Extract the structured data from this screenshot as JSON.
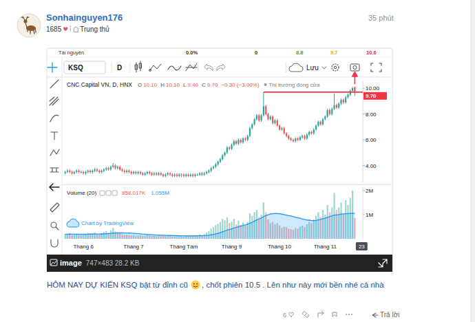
{
  "post": {
    "author": "Sonhainguyen176",
    "stats": "1685",
    "role": "Trung thủ",
    "time": "35 phút",
    "text": [
      "HÔM NAY DỰ KIẾN KSQ bật từ đỉnh cũ",
      ", chốt phiên 10.5 . Lên như này mới bền nhé cả nhà"
    ],
    "likes": "6",
    "reply": "Trả lời",
    "image_caption": {
      "label": "image",
      "dims": "747×483 28.2 KB"
    }
  },
  "widget": {
    "top_row": [
      "Tài nguyên",
      "0.0%",
      "0",
      "8.8",
      "9.7",
      "10.6"
    ],
    "symbol": "KSQ",
    "interval": "D",
    "save": "Lưu",
    "ohlc": [
      [
        "O",
        "10.10"
      ],
      [
        "H",
        "10.10"
      ],
      [
        "L",
        "9.40"
      ],
      [
        "C",
        "9.70"
      ]
    ],
    "change": "−0.30 (−3.00%)",
    "market_status": "Thị trường đóng cửa",
    "watermark": "Chart by TradingView"
  },
  "chart_data": [
    {
      "type": "candlestick",
      "title": "CNC Capital VN, D, HNX",
      "categories": [
        null,
        null,
        null,
        null,
        null,
        null,
        null,
        null,
        "Tháng 6",
        null,
        null,
        null,
        null,
        null,
        null,
        null,
        null,
        null,
        null,
        null,
        null,
        null,
        null,
        null,
        null,
        null,
        null,
        null,
        null,
        null,
        "Tháng 7",
        null,
        null,
        null,
        null,
        null,
        null,
        null,
        null,
        null,
        null,
        null,
        null,
        null,
        null,
        null,
        null,
        null,
        null,
        null,
        null,
        null,
        "Tháng Tám",
        null,
        null,
        null,
        null,
        null,
        null,
        null,
        null,
        null,
        null,
        null,
        null,
        null,
        null,
        null,
        null,
        null,
        null,
        null,
        null,
        "Tháng 9",
        null,
        null,
        null,
        null,
        null,
        null,
        null,
        null,
        null,
        null,
        null,
        null,
        null,
        null,
        null,
        null,
        null,
        null,
        null,
        null,
        "Tháng 10",
        null,
        null,
        null,
        null,
        null,
        null,
        null,
        null,
        null,
        null,
        null,
        null,
        null,
        null,
        null,
        null,
        null,
        null,
        null,
        "Tháng 11",
        null,
        null,
        null,
        null,
        null,
        null,
        null,
        null,
        null,
        null,
        null,
        null,
        null,
        null,
        null,
        "23"
      ],
      "open": [
        3.4,
        3.5,
        3.6,
        3.5,
        3.4,
        3.5,
        3.6,
        3.5,
        3.5,
        3.4,
        3.5,
        3.6,
        3.5,
        3.6,
        3.7,
        3.6,
        3.5,
        3.6,
        3.7,
        3.8,
        3.7,
        3.9,
        4.0,
        3.8,
        3.9,
        3.7,
        3.6,
        3.5,
        3.6,
        3.5,
        3.4,
        3.5,
        3.4,
        3.5,
        3.4,
        3.3,
        3.4,
        3.5,
        3.4,
        3.3,
        3.4,
        3.3,
        3.4,
        3.3,
        3.2,
        3.3,
        3.4,
        3.3,
        3.2,
        3.3,
        3.2,
        3.3,
        3.3,
        3.2,
        3.3,
        3.2,
        3.3,
        3.2,
        3.3,
        3.3,
        3.4,
        3.3,
        3.4,
        3.5,
        3.6,
        3.8,
        3.9,
        4.1,
        4.3,
        4.5,
        4.8,
        5.0,
        5.4,
        5.3,
        5.6,
        5.9,
        5.7,
        6.0,
        5.8,
        6.1,
        6.0,
        6.3,
        6.9,
        7.2,
        7.6,
        7.9,
        7.5,
        7.9,
        8.6,
        8.0,
        7.6,
        7.8,
        7.3,
        7.5,
        7.1,
        6.8,
        6.9,
        6.5,
        6.3,
        6.1,
        6.0,
        5.9,
        6.1,
        6.0,
        6.2,
        6.3,
        6.1,
        6.4,
        6.6,
        6.5,
        6.8,
        7.1,
        7.4,
        7.2,
        7.6,
        7.8,
        8.3,
        8.0,
        8.4,
        8.7,
        8.5,
        8.8,
        9.1,
        8.9,
        9.3,
        9.5,
        9.8,
        10.1,
        null,
        null,
        null
      ],
      "high": [
        3.6,
        3.7,
        3.7,
        3.6,
        3.6,
        3.7,
        3.7,
        3.6,
        3.6,
        3.6,
        3.7,
        3.7,
        3.7,
        3.8,
        3.8,
        3.7,
        3.7,
        3.8,
        3.9,
        3.9,
        4.0,
        4.2,
        4.1,
        4.0,
        4.0,
        3.8,
        3.7,
        3.7,
        3.7,
        3.6,
        3.6,
        3.6,
        3.6,
        3.6,
        3.5,
        3.5,
        3.6,
        3.6,
        3.5,
        3.5,
        3.5,
        3.5,
        3.5,
        3.4,
        3.4,
        3.5,
        3.5,
        3.4,
        3.4,
        3.4,
        3.4,
        3.4,
        3.4,
        3.4,
        3.4,
        3.4,
        3.4,
        3.4,
        3.4,
        3.5,
        3.5,
        3.5,
        3.6,
        3.7,
        3.9,
        4.0,
        4.2,
        4.4,
        4.6,
        4.9,
        5.1,
        5.5,
        5.5,
        5.7,
        6.0,
        6.0,
        6.1,
        6.1,
        6.2,
        6.2,
        6.4,
        7.0,
        7.3,
        7.7,
        8.0,
        8.0,
        8.0,
        9.7,
        8.7,
        8.1,
        7.9,
        7.9,
        7.6,
        7.6,
        7.2,
        7.0,
        7.0,
        6.6,
        6.4,
        6.2,
        6.1,
        6.2,
        6.2,
        6.3,
        6.4,
        6.4,
        6.5,
        6.7,
        6.7,
        6.9,
        7.2,
        7.5,
        7.5,
        7.7,
        7.9,
        8.4,
        8.4,
        8.5,
        9.6,
        8.8,
        8.9,
        9.2,
        9.2,
        9.4,
        9.6,
        9.9,
        10.1,
        10.1,
        null,
        null,
        null
      ],
      "low": [
        3.3,
        3.4,
        3.4,
        3.3,
        3.3,
        3.4,
        3.4,
        3.4,
        3.3,
        3.3,
        3.4,
        3.4,
        3.4,
        3.5,
        3.5,
        3.4,
        3.4,
        3.5,
        3.6,
        3.6,
        3.6,
        3.8,
        3.7,
        3.7,
        3.6,
        3.5,
        3.4,
        3.4,
        3.4,
        3.3,
        3.3,
        3.3,
        3.3,
        3.3,
        3.2,
        3.2,
        3.3,
        3.3,
        3.2,
        3.2,
        3.2,
        3.2,
        3.2,
        3.1,
        3.1,
        3.2,
        3.2,
        3.1,
        3.1,
        3.1,
        3.1,
        3.1,
        3.1,
        3.1,
        3.1,
        3.1,
        3.1,
        3.1,
        3.2,
        3.2,
        3.2,
        3.2,
        3.3,
        3.4,
        3.5,
        3.7,
        3.8,
        4.0,
        4.2,
        4.4,
        4.7,
        4.9,
        5.2,
        5.2,
        5.5,
        5.6,
        5.6,
        5.7,
        5.7,
        5.9,
        5.9,
        6.2,
        6.8,
        7.1,
        7.5,
        7.4,
        7.4,
        7.8,
        7.9,
        7.5,
        7.5,
        7.2,
        7.2,
        7.0,
        6.7,
        6.7,
        6.4,
        6.2,
        6.0,
        5.9,
        5.8,
        5.8,
        5.9,
        5.9,
        6.1,
        6.0,
        6.0,
        6.3,
        6.4,
        6.4,
        6.7,
        7.0,
        7.1,
        7.1,
        7.5,
        7.7,
        7.9,
        7.9,
        8.3,
        8.4,
        8.4,
        8.7,
        8.8,
        8.8,
        9.2,
        9.4,
        9.7,
        9.4,
        null,
        null,
        null
      ],
      "close": [
        3.5,
        3.6,
        3.5,
        3.4,
        3.5,
        3.6,
        3.5,
        3.5,
        3.4,
        3.5,
        3.6,
        3.5,
        3.6,
        3.7,
        3.6,
        3.5,
        3.6,
        3.7,
        3.8,
        3.7,
        3.9,
        4.0,
        3.8,
        3.9,
        3.7,
        3.6,
        3.5,
        3.6,
        3.5,
        3.4,
        3.5,
        3.4,
        3.5,
        3.4,
        3.3,
        3.4,
        3.5,
        3.4,
        3.3,
        3.4,
        3.3,
        3.4,
        3.3,
        3.2,
        3.3,
        3.4,
        3.3,
        3.2,
        3.3,
        3.2,
        3.3,
        3.3,
        3.2,
        3.3,
        3.2,
        3.3,
        3.2,
        3.3,
        3.3,
        3.4,
        3.3,
        3.4,
        3.5,
        3.6,
        3.8,
        3.9,
        4.1,
        4.3,
        4.5,
        4.8,
        5.0,
        5.4,
        5.3,
        5.6,
        5.9,
        5.7,
        6.0,
        5.8,
        6.1,
        6.0,
        6.3,
        6.9,
        7.2,
        7.6,
        7.9,
        7.5,
        7.9,
        8.6,
        8.0,
        7.6,
        7.8,
        7.3,
        7.5,
        7.1,
        6.8,
        6.9,
        6.5,
        6.3,
        6.1,
        6.0,
        5.9,
        6.1,
        6.0,
        6.2,
        6.3,
        6.1,
        6.4,
        6.6,
        6.5,
        6.8,
        7.1,
        7.4,
        7.2,
        7.6,
        7.8,
        8.3,
        8.0,
        8.4,
        8.7,
        8.5,
        8.8,
        9.1,
        8.9,
        9.3,
        9.5,
        9.8,
        10.0,
        9.7,
        null,
        null,
        null
      ],
      "ylim": [
        2.7,
        10.6
      ],
      "yticks": [
        {
          "value": 4,
          "label": "4.00"
        },
        {
          "value": 6,
          "label": "6.00"
        },
        {
          "value": 8,
          "label": "8.00"
        },
        {
          "value": 10,
          "label": "10.00"
        }
      ],
      "grid": false,
      "annotations": [
        {
          "type": "hline",
          "value": 9.7,
          "label": "9.70",
          "start": 87
        }
      ]
    },
    {
      "type": "bar",
      "title": "Volume (20)",
      "series": [
        {
          "type": "bar",
          "last_label": "858.017K",
          "values": [
            200000,
            180000,
            220000,
            150000,
            170000,
            210000,
            190000,
            160000,
            150000,
            180000,
            240000,
            200000,
            220000,
            260000,
            190000,
            170000,
            230000,
            280000,
            320000,
            250000,
            350000,
            450000,
            300000,
            260000,
            220000,
            180000,
            160000,
            170000,
            150000,
            140000,
            160000,
            130000,
            140000,
            150000,
            120000,
            130000,
            160000,
            140000,
            120000,
            130000,
            110000,
            130000,
            120000,
            140000,
            110000,
            150000,
            120000,
            100000,
            110000,
            100000,
            120000,
            110000,
            100000,
            120000,
            110000,
            130000,
            120000,
            140000,
            130000,
            180000,
            150000,
            200000,
            260000,
            320000,
            420000,
            480000,
            560000,
            620000,
            700000,
            820000,
            760000,
            900000,
            650000,
            700000,
            820000,
            600000,
            750000,
            580000,
            680000,
            550000,
            700000,
            1050000,
            950000,
            1100000,
            1200000,
            900000,
            1000000,
            1500000,
            1100000,
            800000,
            650000,
            700000,
            600000,
            650000,
            550000,
            450000,
            500000,
            480000,
            420000,
            400000,
            380000,
            450000,
            420000,
            500000,
            550000,
            480000,
            600000,
            700000,
            650000,
            800000,
            950000,
            1100000,
            900000,
            1200000,
            1000000,
            1400000,
            1100000,
            1300000,
            1900000,
            1200000,
            1300000,
            1500000,
            1000000,
            1600000,
            1400000,
            1700000,
            2000000,
            858017,
            null,
            null,
            null
          ]
        },
        {
          "type": "area",
          "color": "#2196f3",
          "last_label": "1.055M",
          "values": [
            190000,
            190000,
            192000,
            190000,
            188000,
            190000,
            190000,
            188000,
            186000,
            186000,
            190000,
            192000,
            194000,
            198000,
            198000,
            196000,
            200000,
            205000,
            212000,
            214000,
            222000,
            235000,
            240000,
            243000,
            245000,
            242000,
            240000,
            238000,
            235000,
            230000,
            226000,
            220000,
            212000,
            205000,
            195000,
            188000,
            180000,
            172000,
            165000,
            160000,
            155000,
            152000,
            148000,
            145000,
            140000,
            137000,
            135000,
            132000,
            130000,
            128000,
            126000,
            124000,
            122000,
            121000,
            120000,
            120000,
            120000,
            121000,
            122000,
            125000,
            127000,
            131000,
            138000,
            148000,
            163000,
            180000,
            202000,
            226000,
            255000,
            290000,
            321000,
            359000,
            385000,
            413000,
            448000,
            470000,
            502000,
            524000,
            551000,
            572000,
            600000,
            645000,
            685000,
            732000,
            784000,
            820000,
            861000,
            920000,
            966000,
            997000,
            1020000,
            1040000,
            1050000,
            1045000,
            1040000,
            1020000,
            1000000,
            980000,
            960000,
            945000,
            920000,
            895000,
            870000,
            850000,
            820000,
            800000,
            775000,
            770000,
            750000,
            750000,
            760000,
            780000,
            800000,
            830000,
            850000,
            890000,
            920000,
            950000,
            980000,
            990000,
            1000000,
            1020000,
            1030000,
            1040000,
            1045000,
            1050000,
            1060000,
            1055000,
            null,
            null,
            null
          ]
        }
      ],
      "ylim": [
        0,
        2140000
      ],
      "yticks": [
        {
          "value": 1000000,
          "label": "1M"
        },
        {
          "value": 2000000,
          "label": "2M"
        }
      ],
      "grid": false
    }
  ]
}
